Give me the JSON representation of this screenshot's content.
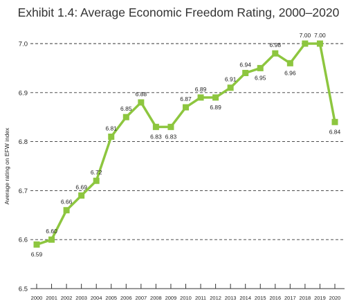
{
  "chart_data": {
    "type": "line",
    "title": "Exhibit 1.4: Average Economic Freedom Rating, 2000–2020",
    "xlabel": "",
    "ylabel": "Average rating on EFW index",
    "ylim": [
      6.5,
      7.0
    ],
    "yticks": [
      "6.5",
      "6.6",
      "6.7",
      "6.8",
      "6.9",
      "7.0"
    ],
    "grid": "dashed horizontal",
    "legend": "none",
    "categories": [
      "2000",
      "2001",
      "2002",
      "2003",
      "2004",
      "2005",
      "2006",
      "2007",
      "2008",
      "2009",
      "2010",
      "2011",
      "2012",
      "2013",
      "2014",
      "2015",
      "2016",
      "2017",
      "2018",
      "2019",
      "2020"
    ],
    "values": [
      6.59,
      6.6,
      6.66,
      6.69,
      6.72,
      6.81,
      6.85,
      6.88,
      6.83,
      6.83,
      6.87,
      6.89,
      6.89,
      6.91,
      6.94,
      6.95,
      6.98,
      6.96,
      7.0,
      7.0,
      6.84
    ],
    "data_labels": [
      "6.59",
      "6.60",
      "6.66",
      "6.69",
      "6.72",
      "6.81",
      "6.85",
      "6.88",
      "6.83",
      "6.83",
      "6.87",
      "6.89",
      "6.89",
      "6.91",
      "6.94",
      "6.95",
      "6.98",
      "6.96",
      "7.00",
      "7.00",
      "6.84"
    ],
    "label_position": [
      "below",
      "above",
      "above",
      "above",
      "above",
      "above",
      "above",
      "above",
      "below",
      "below",
      "above",
      "above",
      "below",
      "above",
      "above",
      "below",
      "above",
      "below",
      "above",
      "above",
      "below"
    ],
    "colors": {
      "line": "#8dc63f",
      "marker": "#8dc63f",
      "grid": "#333333",
      "axis": "#333333"
    }
  }
}
